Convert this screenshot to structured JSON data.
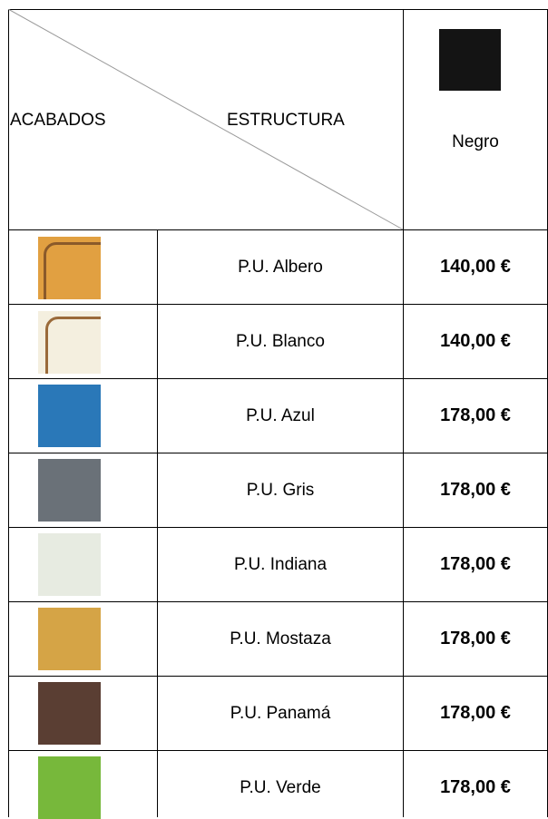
{
  "table": {
    "header": {
      "left": "ACABADOS",
      "right": "ESTRUCTURA",
      "column": "Negro"
    },
    "rows": [
      [
        "P.U. Albero",
        "140,00 €"
      ],
      [
        "P.U. Blanco",
        "140,00 €"
      ],
      [
        "P.U. Azul",
        "178,00 €"
      ],
      [
        "P.U. Gris",
        "178,00 €"
      ],
      [
        "P.U. Indiana",
        "178,00 €"
      ],
      [
        "P.U. Mostaza",
        "178,00 €"
      ],
      [
        "P.U. Panamá",
        "178,00 €"
      ],
      [
        "P.U. Verde",
        "178,00 €"
      ]
    ]
  }
}
